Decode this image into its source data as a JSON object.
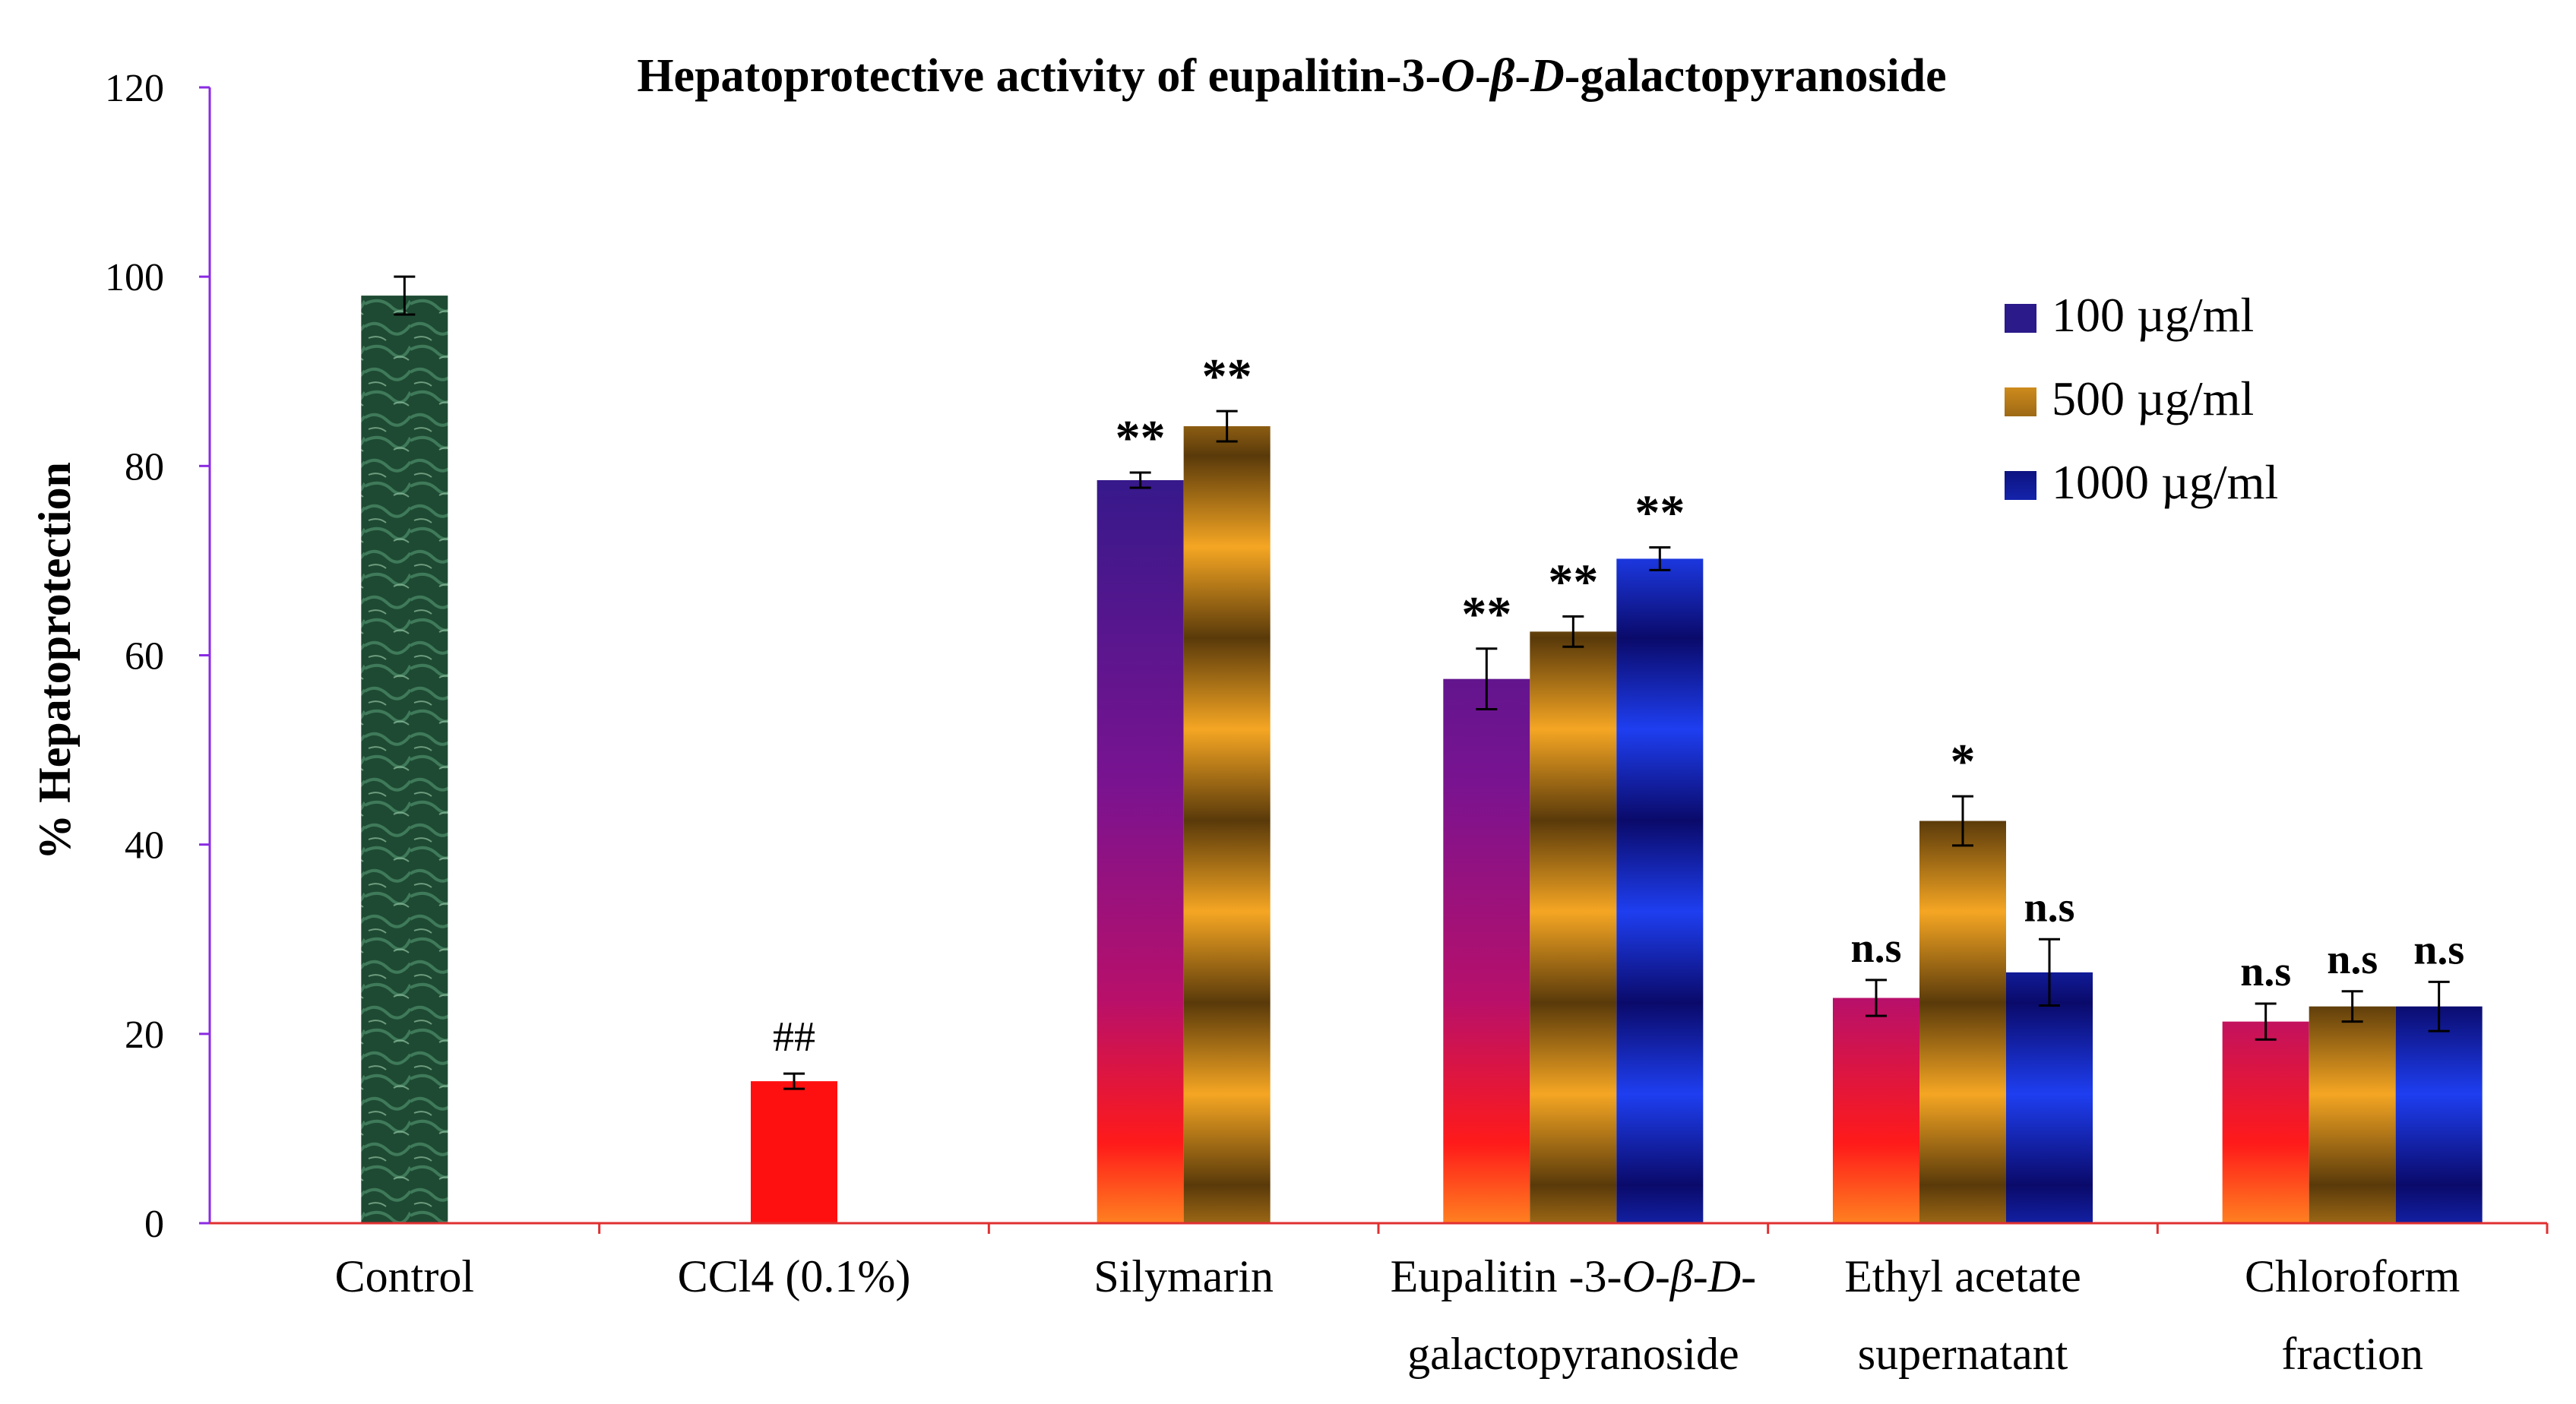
{
  "chart_data": {
    "type": "bar",
    "title_parts": [
      {
        "text": "Hepatoprotective activity of eupalitin-3-",
        "italic": false
      },
      {
        "text": "O",
        "italic": true
      },
      {
        "text": "-",
        "italic": false
      },
      {
        "text": "β",
        "italic": true
      },
      {
        "text": "-",
        "italic": false
      },
      {
        "text": "D",
        "italic": true
      },
      {
        "text": "-galactopyranoside",
        "italic": false
      }
    ],
    "ylabel": "% Hepatoprotection",
    "ylim": [
      0,
      120
    ],
    "yticks": [
      "0",
      "20",
      "40",
      "60",
      "80",
      "100",
      "120"
    ],
    "grid": false,
    "legend_position": "top-right",
    "legend": [
      {
        "label": "100 µg/ml",
        "series": "s100"
      },
      {
        "label": "500 µg/ml",
        "series": "s500"
      },
      {
        "label": "1000 µg/ml",
        "series": "s1000"
      }
    ],
    "groups": [
      {
        "label_lines": [
          [
            {
              "text": "Control",
              "italic": false
            }
          ]
        ],
        "bars": [
          {
            "series": "control",
            "value": 98,
            "error": 2.0,
            "annotation": ""
          }
        ]
      },
      {
        "label_lines": [
          [
            {
              "text": "CCl4 (0.1%)",
              "italic": false
            }
          ]
        ],
        "bars": [
          {
            "series": "ccl4",
            "value": 15,
            "error": 0.8,
            "annotation": "##"
          }
        ]
      },
      {
        "label_lines": [
          [
            {
              "text": "Silymarin",
              "italic": false
            }
          ]
        ],
        "bars": [
          {
            "series": "s100",
            "value": 78.5,
            "error": 0.8,
            "annotation": "**"
          },
          {
            "series": "s500",
            "value": 84.2,
            "error": 1.6,
            "annotation": "**"
          }
        ]
      },
      {
        "label_lines": [
          [
            {
              "text": "Eupalitin -3-",
              "italic": false
            },
            {
              "text": "O",
              "italic": true
            },
            {
              "text": "-",
              "italic": false
            },
            {
              "text": "β",
              "italic": true
            },
            {
              "text": "-",
              "italic": false
            },
            {
              "text": "D",
              "italic": true
            },
            {
              "text": "-",
              "italic": false
            }
          ],
          [
            {
              "text": "galactopyranoside",
              "italic": false
            }
          ]
        ],
        "bars": [
          {
            "series": "s100",
            "value": 57.5,
            "error": 3.2,
            "annotation": "**"
          },
          {
            "series": "s500",
            "value": 62.5,
            "error": 1.6,
            "annotation": "**"
          },
          {
            "series": "s1000",
            "value": 70.2,
            "error": 1.2,
            "annotation": "**"
          }
        ]
      },
      {
        "label_lines": [
          [
            {
              "text": "Ethyl acetate",
              "italic": false
            }
          ],
          [
            {
              "text": "supernatant",
              "italic": false
            }
          ]
        ],
        "bars": [
          {
            "series": "s100",
            "value": 23.8,
            "error": 1.9,
            "annotation": "n.s"
          },
          {
            "series": "s500",
            "value": 42.5,
            "error": 2.6,
            "annotation": "*"
          },
          {
            "series": "s1000",
            "value": 26.5,
            "error": 3.5,
            "annotation": "n.s"
          }
        ]
      },
      {
        "label_lines": [
          [
            {
              "text": "Chloroform",
              "italic": false
            }
          ],
          [
            {
              "text": "fraction",
              "italic": false
            }
          ]
        ],
        "bars": [
          {
            "series": "s100",
            "value": 21.3,
            "error": 1.9,
            "annotation": "n.s"
          },
          {
            "series": "s500",
            "value": 22.9,
            "error": 1.6,
            "annotation": "n.s"
          },
          {
            "series": "s1000",
            "value": 22.9,
            "error": 2.6,
            "annotation": "n.s"
          }
        ]
      }
    ]
  },
  "colors": {
    "axis_left": "#8a2be2",
    "axis_bottom": "#e03030",
    "ccl4": "#ff1010",
    "control_dark": "#1e4a33",
    "control_mid": "#3f7a5a",
    "control_light": "#8fbf9f",
    "s100_top": "#2a1a8a",
    "s100_mid": "#b8106a",
    "s100_low": "#ff1a1a",
    "s100_base": "#ff8020",
    "s500_light": "#f5a623",
    "s500_dark": "#5a3a0a",
    "s1000_light": "#1e3ef0",
    "s1000_dark": "#0a0a6a",
    "text": "#000000"
  }
}
